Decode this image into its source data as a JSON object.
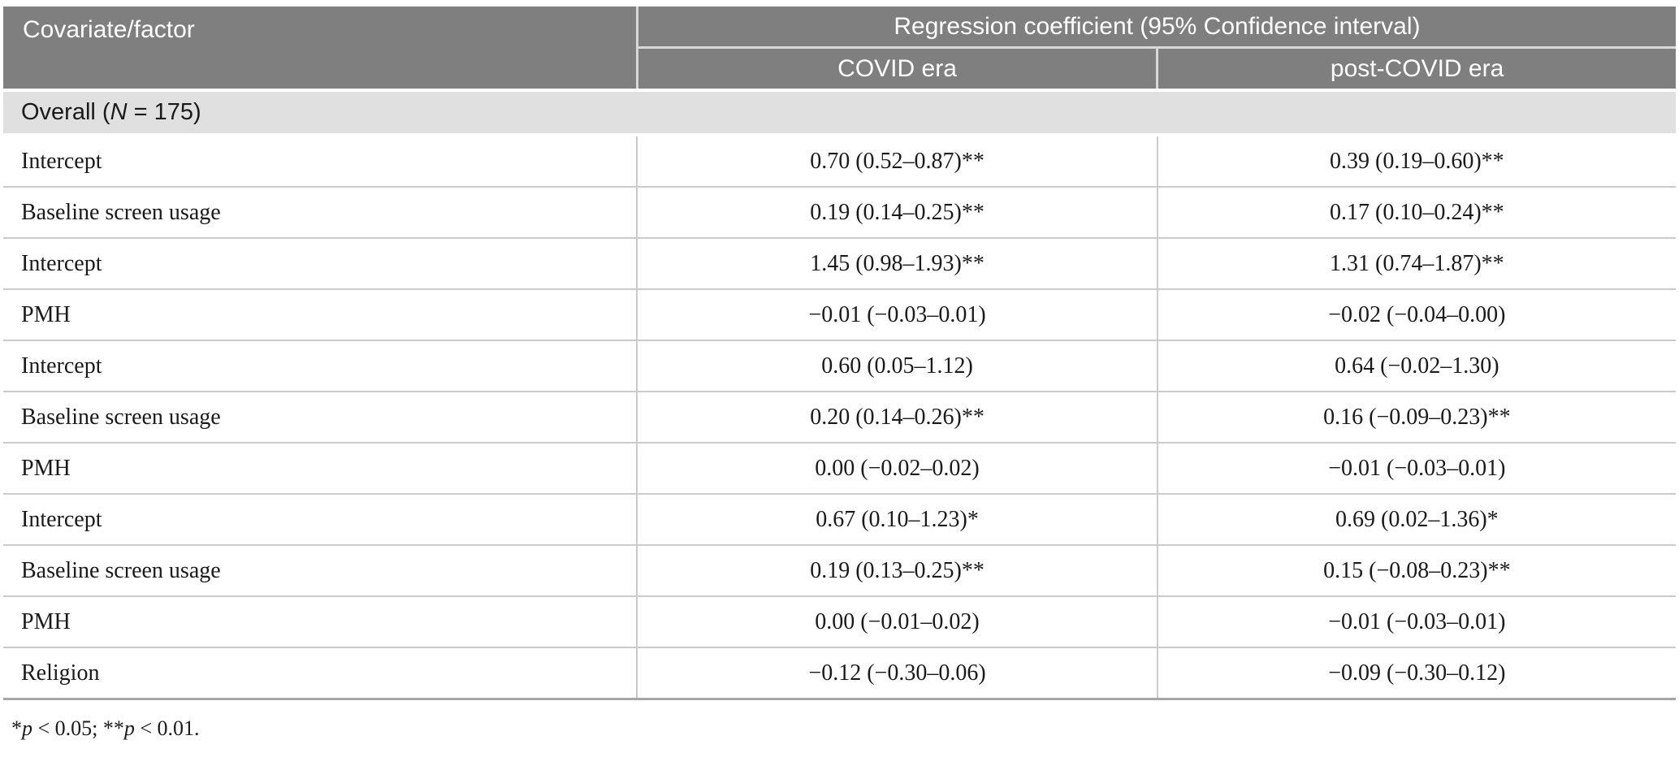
{
  "table": {
    "header": {
      "covariate_col": "Covariate/factor",
      "span_col": "Regression coefficient (95% Confidence interval)",
      "sub_col_1": "COVID era",
      "sub_col_2": "post-COVID era"
    },
    "section": {
      "prefix": "Overall (",
      "n_symbol": "N",
      "suffix": " = 175)"
    },
    "rows": [
      {
        "label": "Intercept",
        "covid": "0.70 (0.52–0.87)**",
        "post_covid": "0.39 (0.19–0.60)**"
      },
      {
        "label": "Baseline screen usage",
        "covid": "0.19 (0.14–0.25)**",
        "post_covid": "0.17 (0.10–0.24)**"
      },
      {
        "label": "Intercept",
        "covid": "1.45 (0.98–1.93)**",
        "post_covid": "1.31 (0.74–1.87)**"
      },
      {
        "label": "PMH",
        "covid": "−0.01 (−0.03–0.01)",
        "post_covid": "−0.02 (−0.04–0.00)"
      },
      {
        "label": "Intercept",
        "covid": "0.60 (0.05–1.12)",
        "post_covid": "0.64 (−0.02–1.30)"
      },
      {
        "label": "Baseline screen usage",
        "covid": "0.20 (0.14–0.26)**",
        "post_covid": "0.16 (−0.09–0.23)**"
      },
      {
        "label": "PMH",
        "covid": "0.00 (−0.02–0.02)",
        "post_covid": "−0.01 (−0.03–0.01)"
      },
      {
        "label": "Intercept",
        "covid": "0.67 (0.10–1.23)*",
        "post_covid": "0.69 (0.02–1.36)*"
      },
      {
        "label": "Baseline screen usage",
        "covid": "0.19 (0.13–0.25)**",
        "post_covid": "0.15 (−0.08–0.23)**"
      },
      {
        "label": "PMH",
        "covid": "0.00 (−0.01–0.02)",
        "post_covid": "−0.01 (−0.03–0.01)"
      },
      {
        "label": "Religion",
        "covid": "−0.12 (−0.30–0.06)",
        "post_covid": "−0.09 (−0.30–0.12)"
      }
    ],
    "footnote": {
      "star1": "*",
      "p1": "p",
      "mid": " < 0.05; **",
      "p2": "p",
      "end": " < 0.01."
    }
  },
  "colors": {
    "header_bg": "#7f7f7f",
    "header_text": "#ffffff",
    "section_bg": "#e0e0e0",
    "border": "#cbcbcb",
    "text": "#1a1a1a"
  }
}
